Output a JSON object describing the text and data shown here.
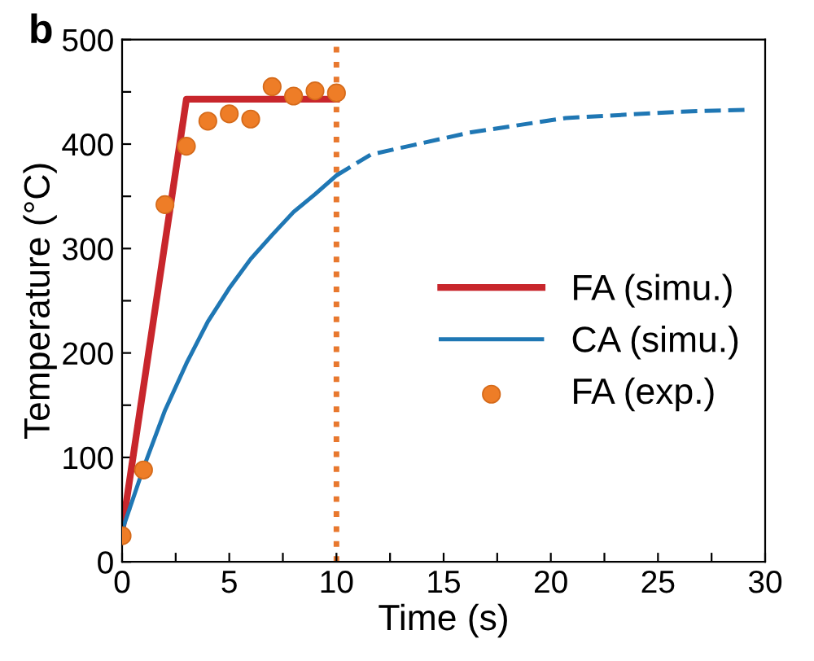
{
  "chart_data": {
    "type": "line",
    "xlabel": "Time (s)",
    "ylabel": "Temperature (°C)",
    "annotations": [
      "b"
    ],
    "xlim": [
      0,
      30
    ],
    "ylim": [
      0,
      500
    ],
    "xticks": [
      0,
      {
        "value": 2.5,
        "label": null
      },
      5,
      {
        "value": 7.5,
        "label": null
      },
      10,
      {
        "value": 12.5,
        "label": null
      },
      15,
      {
        "value": 17.5,
        "label": null
      },
      20,
      {
        "value": 22.5,
        "label": null
      },
      25,
      {
        "value": 27.5,
        "label": null
      },
      30
    ],
    "yticks": [
      0,
      {
        "value": 50,
        "label": null
      },
      100,
      {
        "value": 150,
        "label": null
      },
      200,
      {
        "value": 250,
        "label": null
      },
      300,
      {
        "value": 350,
        "label": null
      },
      400,
      {
        "value": 450,
        "label": null
      },
      500
    ],
    "grid": false,
    "legend": "right",
    "ref_lines": [
      {
        "axis": "x",
        "value": 10,
        "color": "#e8782e",
        "line_style": "dotted"
      }
    ],
    "series": [
      {
        "name": "FA (simu.)",
        "color": "#c8262c",
        "line_style": "solid",
        "marker": "none",
        "x": [
          0,
          3,
          10
        ],
        "values": [
          30,
          443,
          443
        ]
      },
      {
        "name": "CA (simu.)",
        "color": "#1f77b4",
        "line_style": "solid",
        "marker": "none",
        "x": [
          0,
          1,
          2,
          3,
          4,
          5,
          6,
          7,
          8,
          9,
          10
        ],
        "values": [
          30,
          90,
          145,
          190,
          230,
          262,
          290,
          313,
          335,
          352,
          370
        ]
      },
      {
        "color": "#1f77b4",
        "line_style": "dashed",
        "marker": "none",
        "x": [
          10,
          11.6,
          16.2,
          20.7,
          26,
          29.3
        ],
        "values": [
          370,
          390,
          411,
          425,
          431,
          433
        ]
      },
      {
        "name": "FA (exp.)",
        "type": "scatter",
        "color": "#ee7d27",
        "marker": "circle",
        "x": [
          0,
          1,
          2,
          3,
          4,
          5,
          6,
          7,
          8,
          9,
          10
        ],
        "values": [
          25,
          88,
          342,
          398,
          422,
          429,
          424,
          455,
          446,
          451,
          449
        ]
      }
    ]
  }
}
